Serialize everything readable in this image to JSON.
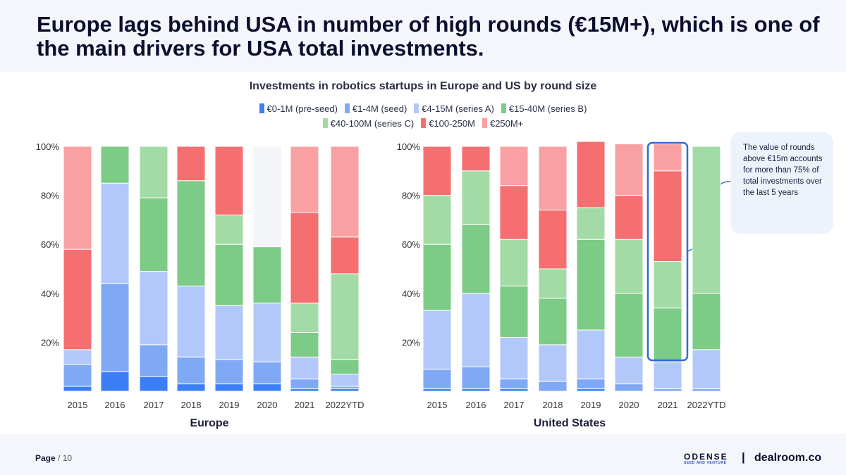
{
  "slide": {
    "title": "Europe lags behind USA in number of high rounds (€15M+), which is one of the main drivers for USA total investments."
  },
  "callout": {
    "text": "The value of rounds above €15m accounts for more than 75% of total investments over the last 5 years"
  },
  "footer": {
    "page_label": "Page",
    "page_total": "/ 10",
    "logo_name": "ODENSE",
    "logo_sub": "SEED AND VENTURE",
    "separator": "|",
    "brand": "dealroom.co"
  },
  "chart_data": {
    "type": "bar",
    "stacked": true,
    "title": "Investments in robotics startups in Europe and US by round size",
    "legend": [
      {
        "name": "€0-1M (pre-seed)",
        "color": "#3b7ef5"
      },
      {
        "name": "€1-4M (seed)",
        "color": "#7fa8f5"
      },
      {
        "name": "€4-15M (series A)",
        "color": "#b3c8fa"
      },
      {
        "name": "€15-40M (series B)",
        "color": "#7ccb86"
      },
      {
        "name": "€40-100M (series C)",
        "color": "#a3dba6"
      },
      {
        "name": "€100-250M",
        "color": "#f56e70"
      },
      {
        "name": "€250M+",
        "color": "#f8a0a2"
      }
    ],
    "y_ticks": [
      "20%",
      "40%",
      "60%",
      "80%",
      "100%"
    ],
    "ylim": [
      0,
      100
    ],
    "charts": [
      {
        "region": "Europe",
        "categories": [
          "2015",
          "2016",
          "2017",
          "2018",
          "2019",
          "2020",
          "2021",
          "2022YTD"
        ],
        "series": [
          {
            "name": "€0-1M (pre-seed)",
            "values": [
              2,
              8,
              6,
              3,
              3,
              3,
              1,
              1
            ]
          },
          {
            "name": "€1-4M (seed)",
            "values": [
              9,
              36,
              13,
              11,
              10,
              9,
              4,
              1
            ]
          },
          {
            "name": "€4-15M (series A)",
            "values": [
              6,
              41,
              30,
              29,
              22,
              24,
              9,
              5
            ]
          },
          {
            "name": "€15-40M (series B)",
            "values": [
              0,
              15,
              30,
              43,
              25,
              23,
              10,
              6
            ]
          },
          {
            "name": "€40-100M (series C)",
            "values": [
              0,
              0,
              21,
              0,
              12,
              0,
              12,
              35
            ]
          },
          {
            "name": "€100-250M",
            "values": [
              41,
              0,
              0,
              14,
              28,
              0,
              37,
              15
            ]
          },
          {
            "name": "€250M+",
            "values": [
              42,
              0,
              0,
              0,
              0,
              0,
              27,
              37
            ]
          }
        ]
      },
      {
        "region": "United States",
        "categories": [
          "2015",
          "2016",
          "2017",
          "2018",
          "2019",
          "2020",
          "2021",
          "2022YTD"
        ],
        "series": [
          {
            "name": "€0-1M (pre-seed)",
            "values": [
              1,
              1,
              1,
              0,
              1,
              0,
              0,
              0
            ]
          },
          {
            "name": "€1-4M (seed)",
            "values": [
              8,
              9,
              4,
              4,
              4,
              3,
              1,
              1
            ]
          },
          {
            "name": "€4-15M (series A)",
            "values": [
              24,
              30,
              17,
              15,
              20,
              11,
              11,
              16
            ]
          },
          {
            "name": "€15-40M (series B)",
            "values": [
              27,
              28,
              21,
              19,
              37,
              26,
              22,
              23
            ]
          },
          {
            "name": "€40-100M (series C)",
            "values": [
              20,
              22,
              19,
              12,
              13,
              22,
              19,
              60
            ]
          },
          {
            "name": "€100-250M",
            "values": [
              20,
              10,
              22,
              24,
              27,
              18,
              37,
              0
            ]
          },
          {
            "name": "€250M+",
            "values": [
              0,
              0,
              16,
              26,
              0,
              21,
              11,
              0
            ]
          }
        ]
      }
    ],
    "highlight": {
      "region": "United States",
      "category": "2021"
    }
  }
}
